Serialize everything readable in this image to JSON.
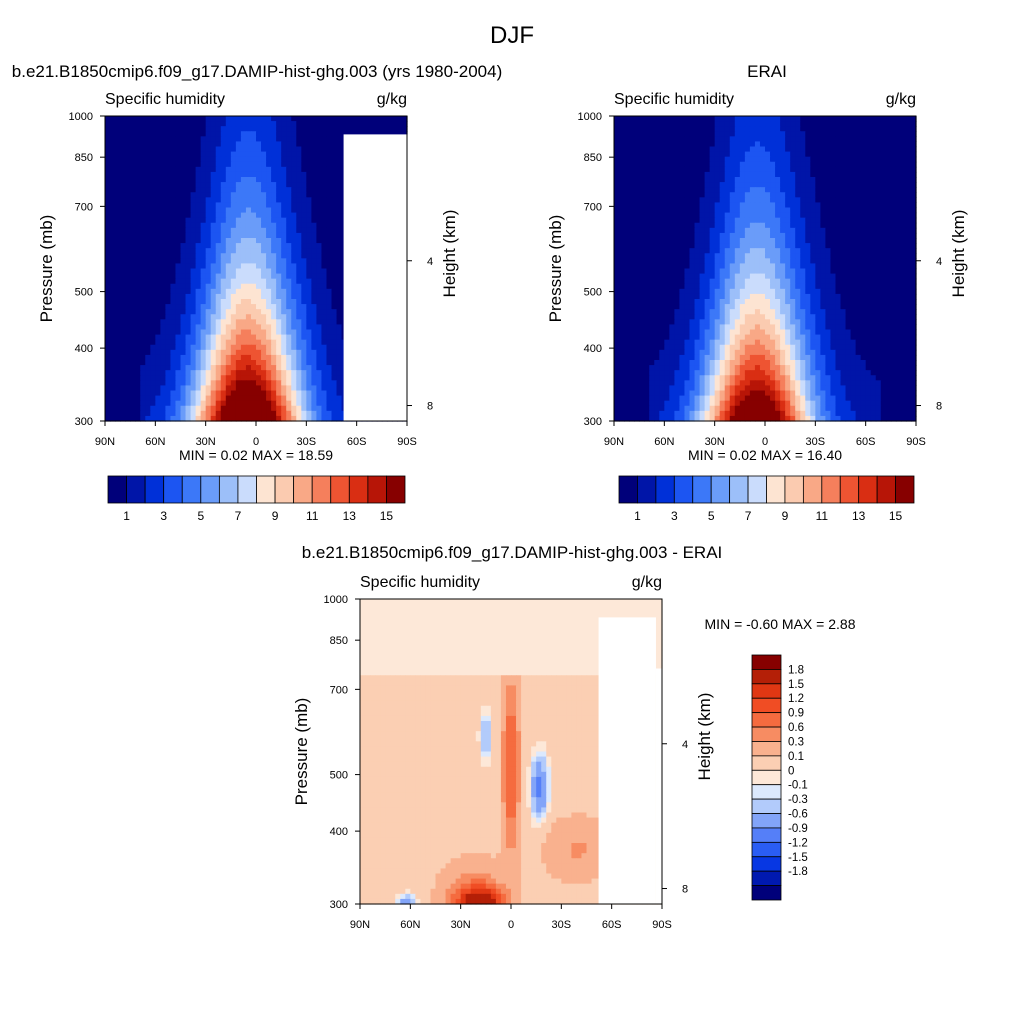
{
  "figure": {
    "title": "DJF"
  },
  "palettes": {
    "humidity": [
      "#00007a",
      "#0015a8",
      "#0030d8",
      "#1c55f2",
      "#3c78f8",
      "#6a9cf9",
      "#9cbff9",
      "#cadcfc",
      "#fde4d2",
      "#fbcbb0",
      "#f9a886",
      "#f57f5c",
      "#ee5432",
      "#d92e13",
      "#b71507",
      "#870000"
    ],
    "difference": [
      "#00007a",
      "#0019b0",
      "#0737e3",
      "#2a5df4",
      "#557ff8",
      "#82a4f8",
      "#b2cbfb",
      "#dce9fd",
      "#fde8d8",
      "#fbcfb3",
      "#f9b18e",
      "#f78c62",
      "#f56b3f",
      "#f04d24",
      "#e03713",
      "#b41f07",
      "#860000"
    ]
  },
  "chart_data": [
    {
      "type": "heatmap",
      "title": "b.e21.B1850cmip6.f09_g17.DAMIP-hist-ghg.003 (yrs 1980-2004)",
      "left_label": "Specific humidity",
      "right_label": "g/kg",
      "xlabel": "",
      "ylabel": "Pressure (mb)",
      "y2label": "Height (km)",
      "x_ticks": [
        "90N",
        "60N",
        "30N",
        "0",
        "30S",
        "60S",
        "90S"
      ],
      "x_range": [
        90,
        -90
      ],
      "y_ticks": [
        "300",
        "400",
        "500",
        "700",
        "850",
        "1000"
      ],
      "y_range_mb": [
        1000,
        300
      ],
      "y_scale": "log",
      "y2_ticks": [
        "8",
        "4"
      ],
      "stats": "MIN =   0.02  MAX =  18.59",
      "min": 0.02,
      "max": 18.59,
      "colorbar_labels": [
        "1",
        "3",
        "5",
        "7",
        "9",
        "11",
        "13",
        "15"
      ],
      "colorbar_levels": [
        1,
        2,
        3,
        4,
        5,
        6,
        7,
        8,
        9,
        10,
        11,
        12,
        13,
        14,
        15
      ],
      "topography_mask": "Antarctica and Himalaya region blanked"
    },
    {
      "type": "heatmap",
      "title": "ERAI",
      "left_label": "Specific humidity",
      "right_label": "g/kg",
      "xlabel": "",
      "ylabel": "Pressure (mb)",
      "y2label": "Height (km)",
      "x_ticks": [
        "90N",
        "60N",
        "30N",
        "0",
        "30S",
        "60S",
        "90S"
      ],
      "x_range": [
        90,
        -90
      ],
      "y_ticks": [
        "300",
        "400",
        "500",
        "700",
        "850",
        "1000"
      ],
      "y_range_mb": [
        1000,
        300
      ],
      "y_scale": "log",
      "y2_ticks": [
        "8",
        "4"
      ],
      "stats": "MIN =   0.02  MAX =  16.40",
      "min": 0.02,
      "max": 16.4,
      "colorbar_labels": [
        "1",
        "3",
        "5",
        "7",
        "9",
        "11",
        "13",
        "15"
      ],
      "colorbar_levels": [
        1,
        2,
        3,
        4,
        5,
        6,
        7,
        8,
        9,
        10,
        11,
        12,
        13,
        14,
        15
      ]
    },
    {
      "type": "heatmap",
      "title": "b.e21.B1850cmip6.f09_g17.DAMIP-hist-ghg.003 - ERAI",
      "left_label": "Specific humidity",
      "right_label": "g/kg",
      "xlabel": "",
      "ylabel": "Pressure (mb)",
      "y2label": "Height (km)",
      "x_ticks": [
        "90N",
        "60N",
        "30N",
        "0",
        "30S",
        "60S",
        "90S"
      ],
      "x_range": [
        90,
        -90
      ],
      "y_ticks": [
        "300",
        "400",
        "500",
        "700",
        "850",
        "1000"
      ],
      "y_range_mb": [
        1000,
        300
      ],
      "y_scale": "log",
      "y2_ticks": [
        "8",
        "4"
      ],
      "stats": "MIN =  -0.60  MAX =   2.88",
      "min": -0.6,
      "max": 2.88,
      "colorbar_labels": [
        "1.8",
        "1.5",
        "1.2",
        "0.9",
        "0.6",
        "0.3",
        "0.1",
        "0",
        "-0.1",
        "-0.3",
        "-0.6",
        "-0.9",
        "-1.2",
        "-1.5",
        "-1.8"
      ],
      "colorbar_levels": [
        -1.8,
        -1.5,
        -1.2,
        -0.9,
        -0.6,
        -0.3,
        -0.1,
        0,
        0.1,
        0.3,
        0.6,
        0.9,
        1.2,
        1.5,
        1.8
      ]
    }
  ]
}
